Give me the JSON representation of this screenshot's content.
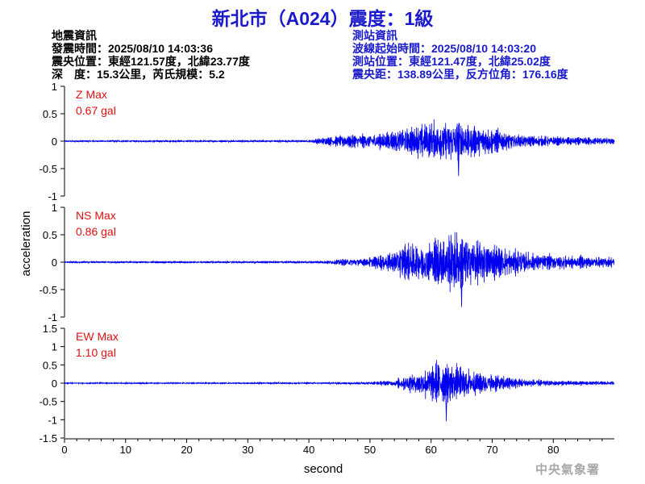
{
  "title": "新北市（A024）震度：1級",
  "event_info": {
    "heading": "地震資訊",
    "origin_time": "發震時間：2025/08/10 14:03:36",
    "epicenter": "震央位置：東經121.57度，北緯23.77度",
    "depth_magnitude": "深　度：15.3公里，芮氏規模：5.2"
  },
  "station_info": {
    "heading": "測站資訊",
    "waveform_start": "波線起始時間：2025/08/10 14:03:20",
    "location": "測站位置：東經121.47度，北緯25.02度",
    "distance_azimuth": "震央距：138.89公里，反方位角：176.16度"
  },
  "watermark": "中央氣象署",
  "chart_data": [
    {
      "type": "line",
      "component": "Z Max",
      "peak_label": "0.67 gal",
      "peak_abs": 0.67,
      "ylim": [
        -1,
        1
      ],
      "yticks": [
        "1",
        "0.5",
        "0",
        "-0.5",
        "-1"
      ],
      "ytick_values": [
        1,
        0.5,
        0,
        -0.5,
        -1
      ],
      "envelope": [
        [
          0,
          0.02
        ],
        [
          40,
          0.03
        ],
        [
          42,
          0.09
        ],
        [
          46,
          0.16
        ],
        [
          52,
          0.2
        ],
        [
          57,
          0.38
        ],
        [
          62,
          0.55
        ],
        [
          64,
          0.58
        ],
        [
          66,
          0.42
        ],
        [
          70,
          0.32
        ],
        [
          75,
          0.15
        ],
        [
          80,
          0.11
        ],
        [
          90,
          0.09
        ]
      ],
      "color": "#0000ee"
    },
    {
      "type": "line",
      "component": "NS Max",
      "peak_label": "0.86 gal",
      "peak_abs": 0.86,
      "ylim": [
        -1,
        1
      ],
      "yticks": [
        "1",
        "0.5",
        "0",
        "-0.5",
        "-1"
      ],
      "ytick_values": [
        1,
        0.5,
        0,
        -0.5,
        -1
      ],
      "envelope": [
        [
          0,
          0.02
        ],
        [
          42,
          0.03
        ],
        [
          45,
          0.08
        ],
        [
          50,
          0.12
        ],
        [
          54,
          0.28
        ],
        [
          57,
          0.5
        ],
        [
          61,
          0.62
        ],
        [
          64,
          0.78
        ],
        [
          67,
          0.6
        ],
        [
          72,
          0.35
        ],
        [
          78,
          0.2
        ],
        [
          90,
          0.12
        ]
      ],
      "color": "#0000ee"
    },
    {
      "type": "line",
      "component": "EW Max",
      "peak_label": "1.10 gal",
      "peak_abs": 1.1,
      "ylim": [
        -1.5,
        1.5
      ],
      "yticks": [
        "1.5",
        "1",
        "0.5",
        "0",
        "-0.5",
        "-1",
        "-1.5"
      ],
      "ytick_values": [
        1.5,
        1,
        0.5,
        0,
        -0.5,
        -1,
        -1.5
      ],
      "envelope": [
        [
          0,
          0.02
        ],
        [
          45,
          0.03
        ],
        [
          50,
          0.06
        ],
        [
          54,
          0.12
        ],
        [
          57,
          0.4
        ],
        [
          60,
          0.7
        ],
        [
          62,
          0.9
        ],
        [
          65,
          0.6
        ],
        [
          70,
          0.35
        ],
        [
          75,
          0.18
        ],
        [
          80,
          0.1
        ],
        [
          90,
          0.07
        ]
      ],
      "color": "#0000ee"
    }
  ],
  "x_axis": {
    "label": "second",
    "ticks": [
      "0",
      "10",
      "20",
      "30",
      "40",
      "50",
      "60",
      "70",
      "80"
    ],
    "tick_values": [
      0,
      10,
      20,
      30,
      40,
      50,
      60,
      70,
      80
    ],
    "xlim": [
      0,
      90
    ]
  },
  "y_axis_label": "acceleration",
  "colors": {
    "title": "#1a1acc",
    "station": "#1a1acc",
    "max_label": "#e01010",
    "trace": "#0000ee"
  }
}
